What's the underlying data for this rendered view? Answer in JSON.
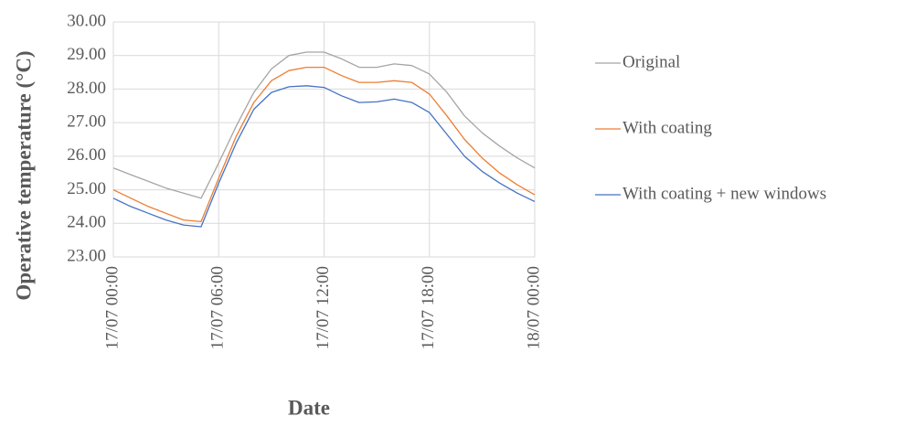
{
  "chart_data": {
    "type": "line",
    "xlabel": "Date",
    "ylabel": "Operative temperature (°C)",
    "categories": [
      "17/07 00:00",
      null,
      null,
      null,
      null,
      null,
      "17/07 06:00",
      null,
      null,
      null,
      null,
      null,
      "17/07 12:00",
      null,
      null,
      null,
      null,
      null,
      "17/07 18:00",
      null,
      null,
      null,
      null,
      null,
      "18/07 00:00"
    ],
    "series": [
      {
        "name": "Original",
        "color": "#a5a5a5",
        "values": [
          25.65,
          25.45,
          25.25,
          25.05,
          24.9,
          24.75,
          25.8,
          26.9,
          27.9,
          28.6,
          29.0,
          29.1,
          29.1,
          28.9,
          28.65,
          28.65,
          28.75,
          28.7,
          28.45,
          27.9,
          27.2,
          26.7,
          26.3,
          25.95,
          25.65
        ]
      },
      {
        "name": "With coating",
        "color": "#ed7d31",
        "values": [
          25.0,
          24.75,
          24.5,
          24.3,
          24.1,
          24.05,
          25.35,
          26.6,
          27.6,
          28.25,
          28.55,
          28.65,
          28.65,
          28.4,
          28.2,
          28.2,
          28.25,
          28.2,
          27.85,
          27.2,
          26.5,
          25.95,
          25.5,
          25.15,
          24.85
        ]
      },
      {
        "name": "With coating + new windows",
        "color": "#4472c4",
        "values": [
          24.75,
          24.5,
          24.3,
          24.1,
          23.95,
          23.9,
          25.2,
          26.4,
          27.4,
          27.9,
          28.07,
          28.1,
          28.05,
          27.8,
          27.6,
          27.62,
          27.7,
          27.6,
          27.3,
          26.65,
          26.0,
          25.55,
          25.2,
          24.9,
          24.65
        ]
      }
    ],
    "ylim": [
      23,
      30
    ],
    "yticks": [
      {
        "value": 23,
        "label": "23.00"
      },
      {
        "value": 24,
        "label": "24.00"
      },
      {
        "value": 25,
        "label": "25.00"
      },
      {
        "value": 26,
        "label": "26.00"
      },
      {
        "value": 27,
        "label": "27.00"
      },
      {
        "value": 28,
        "label": "28.00"
      },
      {
        "value": 29,
        "label": "29.00"
      },
      {
        "value": 30,
        "label": "30.00"
      }
    ],
    "grid": true,
    "legend": "right"
  }
}
